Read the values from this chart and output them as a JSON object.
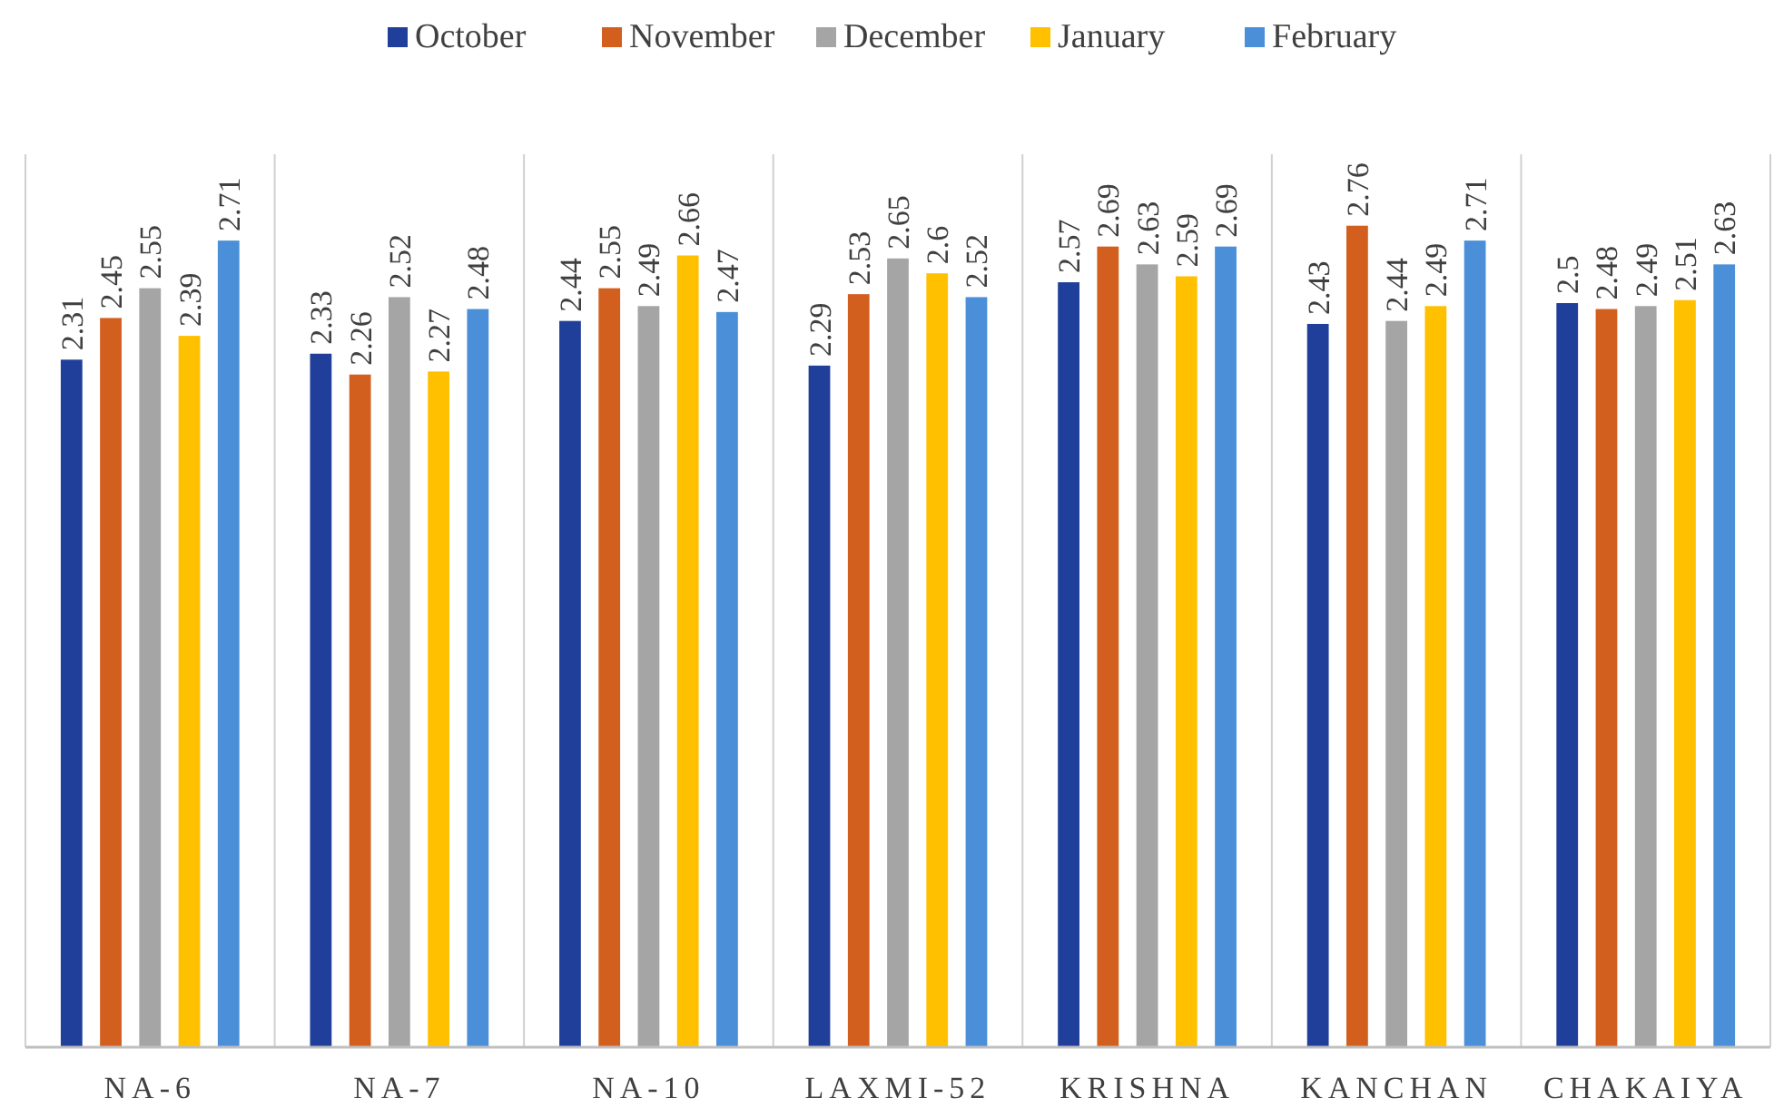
{
  "chart_data": {
    "type": "bar",
    "categories": [
      "NA-6",
      "NA-7",
      "NA-10",
      "LAXMI-52",
      "KRISHNA",
      "KANCHAN",
      "CHAKAIYA"
    ],
    "series": [
      {
        "name": "October",
        "color": "#203f9a",
        "values": [
          2.31,
          2.33,
          2.44,
          2.29,
          2.57,
          2.43,
          2.5
        ]
      },
      {
        "name": "November",
        "color": "#d35f1e",
        "values": [
          2.45,
          2.26,
          2.55,
          2.53,
          2.69,
          2.76,
          2.48
        ]
      },
      {
        "name": "December",
        "color": "#a5a5a5",
        "values": [
          2.55,
          2.52,
          2.49,
          2.65,
          2.63,
          2.44,
          2.49
        ]
      },
      {
        "name": "January",
        "color": "#ffc000",
        "values": [
          2.39,
          2.27,
          2.66,
          2.6,
          2.59,
          2.49,
          2.51
        ]
      },
      {
        "name": "February",
        "color": "#4a8fd8",
        "values": [
          2.71,
          2.48,
          2.47,
          2.52,
          2.69,
          2.71,
          2.63
        ]
      }
    ],
    "ylim": [
      0,
      3
    ],
    "data_labels": true,
    "grid": "x",
    "legend": "top",
    "tick_labels": "x"
  }
}
